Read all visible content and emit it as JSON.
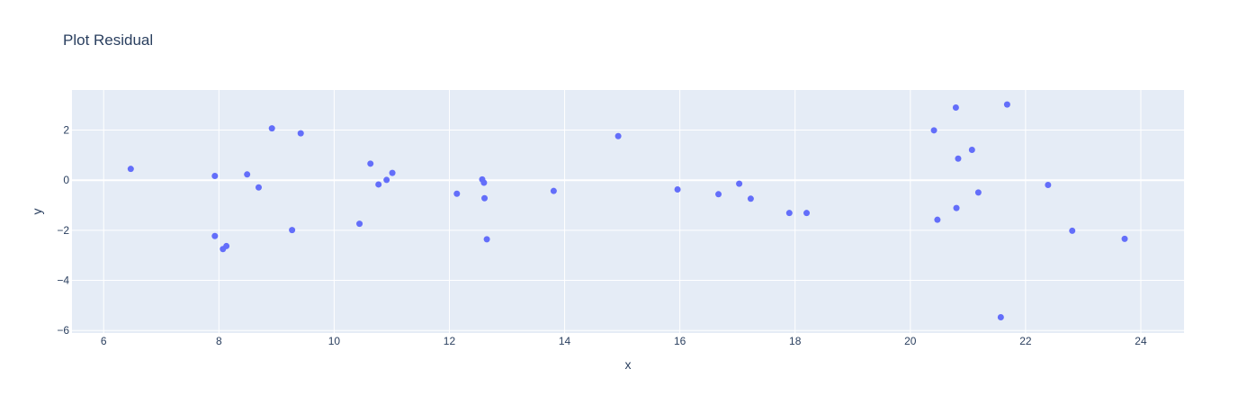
{
  "chart_data": {
    "type": "scatter",
    "title": "Plot Residual",
    "xlabel": "x",
    "ylabel": "y",
    "xlim": [
      5.45,
      24.75
    ],
    "ylim": [
      -6.1,
      3.6
    ],
    "x_ticks": [
      6,
      8,
      10,
      12,
      14,
      16,
      18,
      20,
      22,
      24
    ],
    "y_ticks": [
      -6,
      -4,
      -2,
      0,
      2
    ],
    "grid": true,
    "colors": {
      "marker": "#636efa",
      "plot_bg": "#e5ecf6",
      "grid": "#ffffff",
      "text": "#2a3f5f"
    },
    "points": [
      {
        "x": 6.47,
        "y": 0.45
      },
      {
        "x": 7.93,
        "y": 0.17
      },
      {
        "x": 7.93,
        "y": -2.23
      },
      {
        "x": 8.07,
        "y": -2.75
      },
      {
        "x": 8.13,
        "y": -2.63
      },
      {
        "x": 8.49,
        "y": 0.23
      },
      {
        "x": 8.69,
        "y": -0.29
      },
      {
        "x": 8.92,
        "y": 2.07
      },
      {
        "x": 9.27,
        "y": -1.99
      },
      {
        "x": 9.42,
        "y": 1.87
      },
      {
        "x": 10.44,
        "y": -1.74
      },
      {
        "x": 10.63,
        "y": 0.66
      },
      {
        "x": 10.77,
        "y": -0.17
      },
      {
        "x": 10.91,
        "y": 0.01
      },
      {
        "x": 11.01,
        "y": 0.29
      },
      {
        "x": 12.13,
        "y": -0.54
      },
      {
        "x": 12.57,
        "y": 0.03
      },
      {
        "x": 12.6,
        "y": -0.1
      },
      {
        "x": 12.61,
        "y": -0.72
      },
      {
        "x": 12.65,
        "y": -2.36
      },
      {
        "x": 13.81,
        "y": -0.43
      },
      {
        "x": 14.93,
        "y": 1.76
      },
      {
        "x": 15.96,
        "y": -0.37
      },
      {
        "x": 16.67,
        "y": -0.56
      },
      {
        "x": 17.03,
        "y": -0.14
      },
      {
        "x": 17.23,
        "y": -0.74
      },
      {
        "x": 17.9,
        "y": -1.31
      },
      {
        "x": 18.2,
        "y": -1.31
      },
      {
        "x": 20.41,
        "y": 1.99
      },
      {
        "x": 20.47,
        "y": -1.58
      },
      {
        "x": 20.79,
        "y": 2.9
      },
      {
        "x": 20.8,
        "y": -1.11
      },
      {
        "x": 20.83,
        "y": 0.86
      },
      {
        "x": 21.07,
        "y": 1.21
      },
      {
        "x": 21.18,
        "y": -0.49
      },
      {
        "x": 21.57,
        "y": -5.47
      },
      {
        "x": 21.68,
        "y": 3.02
      },
      {
        "x": 22.39,
        "y": -0.19
      },
      {
        "x": 22.81,
        "y": -2.02
      },
      {
        "x": 23.72,
        "y": -2.34
      }
    ]
  }
}
